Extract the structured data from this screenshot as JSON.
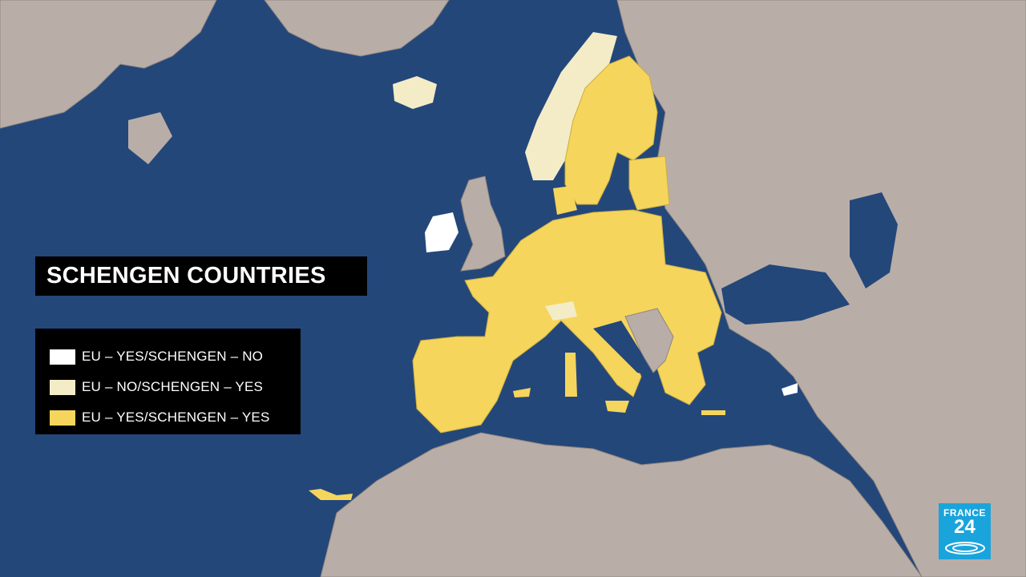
{
  "title": "SCHENGEN COUNTRIES",
  "legend": [
    {
      "label": "EU – YES/SCHENGEN – NO",
      "color": "#ffffff"
    },
    {
      "label": "EU – NO/SCHENGEN – YES",
      "color": "#f3ecc7"
    },
    {
      "label": "EU – YES/SCHENGEN – YES",
      "color": "#f5d55c"
    }
  ],
  "logo": {
    "line1": "FRANCE",
    "line2": "24"
  },
  "colors": {
    "sea": "#24477a",
    "land": "#b9aea7",
    "eu_schengen": "#f5d55c",
    "non_eu_schengen": "#f3ecc7",
    "eu_non_schengen": "#ffffff",
    "logo_bg": "#1aa4dc"
  }
}
